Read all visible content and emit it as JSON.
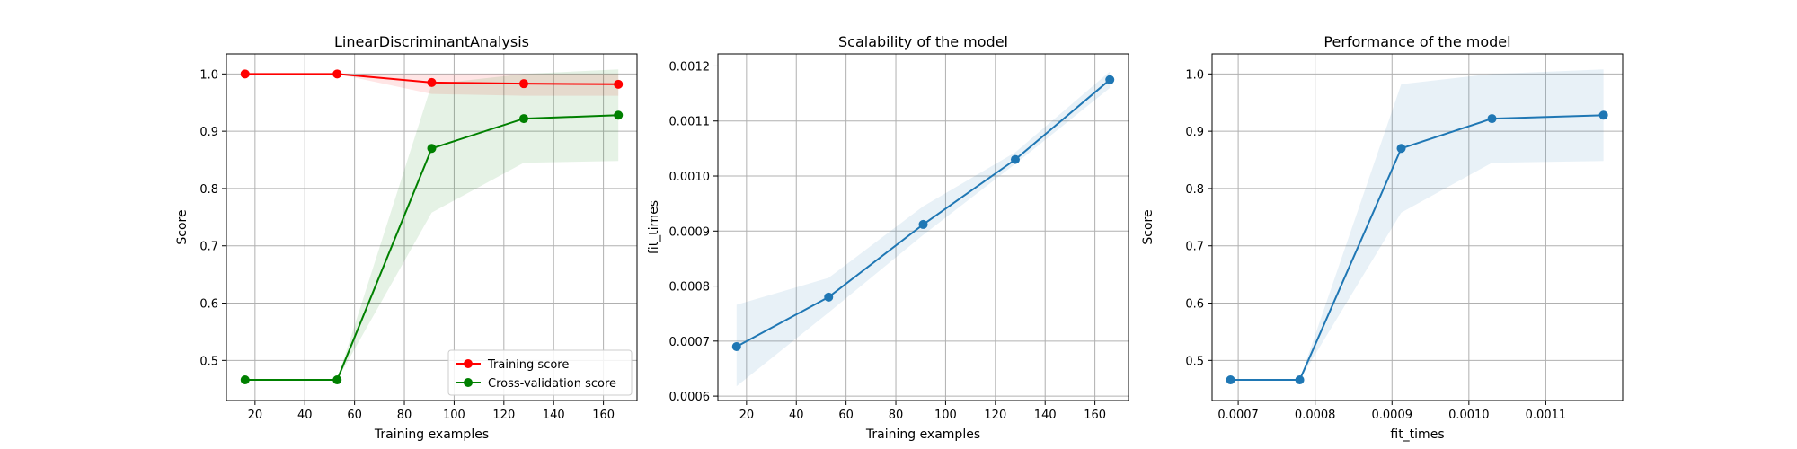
{
  "chart_data": [
    {
      "type": "line",
      "title": "LinearDiscriminantAnalysis",
      "xlabel": "Training examples",
      "ylabel": "Score",
      "xlim": [
        8.5,
        173.5
      ],
      "ylim": [
        0.43,
        1.035
      ],
      "xticks": [
        20,
        40,
        60,
        80,
        100,
        120,
        140,
        160
      ],
      "xtick_labels": [
        "20",
        "40",
        "60",
        "80",
        "100",
        "120",
        "140",
        "160"
      ],
      "yticks": [
        0.5,
        0.6,
        0.7,
        0.8,
        0.9,
        1.0
      ],
      "ytick_labels": [
        "0.5",
        "0.6",
        "0.7",
        "0.8",
        "0.9",
        "1.0"
      ],
      "grid": true,
      "legend": "lower-right",
      "x": [
        16,
        53,
        91,
        128,
        166
      ],
      "series": [
        {
          "name": "Training score",
          "color": "#ff0000",
          "values": [
            1.0,
            1.0,
            0.985,
            0.983,
            0.982
          ],
          "band_low": [
            1.0,
            1.0,
            0.965,
            0.962,
            0.962
          ],
          "band_high": [
            1.0,
            1.0,
            1.0,
            1.0,
            1.0
          ]
        },
        {
          "name": "Cross-validation score",
          "color": "#008000",
          "values": [
            0.466,
            0.466,
            0.87,
            0.922,
            0.928
          ],
          "band_low": [
            0.466,
            0.466,
            0.758,
            0.845,
            0.848
          ],
          "band_high": [
            0.466,
            0.466,
            0.982,
            1.0,
            1.008
          ]
        }
      ]
    },
    {
      "type": "line",
      "title": "Scalability of the model",
      "xlabel": "Training examples",
      "ylabel": "fit_times",
      "xlim": [
        8.5,
        173.5
      ],
      "ylim": [
        0.000592,
        0.001222
      ],
      "xticks": [
        20,
        40,
        60,
        80,
        100,
        120,
        140,
        160
      ],
      "xtick_labels": [
        "20",
        "40",
        "60",
        "80",
        "100",
        "120",
        "140",
        "160"
      ],
      "yticks": [
        0.0006,
        0.0007,
        0.0008,
        0.0009,
        0.001,
        0.0011,
        0.0012
      ],
      "ytick_labels": [
        "0.0006",
        "0.0007",
        "0.0008",
        "0.0009",
        "0.0010",
        "0.0011",
        "0.0012"
      ],
      "grid": true,
      "x": [
        16,
        53,
        91,
        128,
        166
      ],
      "series": [
        {
          "color": "#1f77b4",
          "values": [
            0.00069,
            0.00078,
            0.000912,
            0.00103,
            0.001175
          ],
          "band_low": [
            0.000618,
            0.000752,
            0.000893,
            0.001022,
            0.00116
          ],
          "band_high": [
            0.000766,
            0.000815,
            0.000945,
            0.001043,
            0.00119
          ]
        }
      ]
    },
    {
      "type": "line",
      "title": "Performance of the model",
      "xlabel": "fit_times",
      "ylabel": "Score",
      "xlim": [
        0.000666,
        0.0012
      ],
      "ylim": [
        0.43,
        1.035
      ],
      "xticks": [
        0.0007,
        0.0008,
        0.0009,
        0.001,
        0.0011
      ],
      "xtick_labels": [
        "0.0007",
        "0.0008",
        "0.0009",
        "0.0010",
        "0.0011"
      ],
      "yticks": [
        0.5,
        0.6,
        0.7,
        0.8,
        0.9,
        1.0
      ],
      "ytick_labels": [
        "0.5",
        "0.6",
        "0.7",
        "0.8",
        "0.9",
        "1.0"
      ],
      "grid": true,
      "x": [
        0.00069,
        0.00078,
        0.000912,
        0.00103,
        0.001175
      ],
      "series": [
        {
          "color": "#1f77b4",
          "values": [
            0.466,
            0.466,
            0.87,
            0.922,
            0.928
          ],
          "band_low": [
            0.466,
            0.466,
            0.758,
            0.845,
            0.848
          ],
          "band_high": [
            0.466,
            0.466,
            0.982,
            1.0,
            1.008
          ]
        }
      ]
    }
  ]
}
